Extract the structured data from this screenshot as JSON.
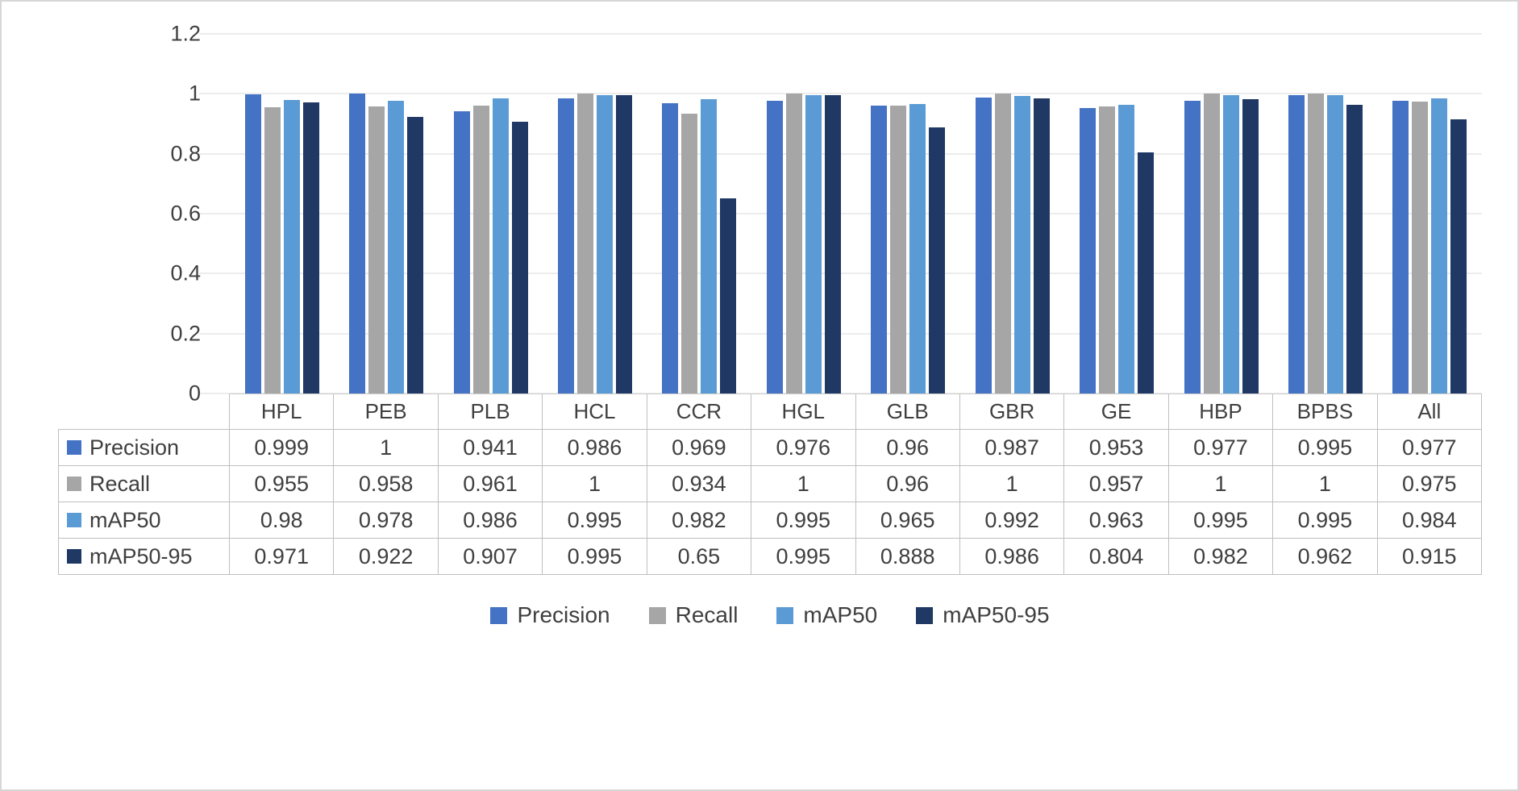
{
  "chart_data": {
    "type": "bar",
    "title": "",
    "xlabel": "",
    "ylabel": "",
    "ylim": [
      0,
      1.2
    ],
    "yticks": [
      "0",
      "0.2",
      "0.4",
      "0.6",
      "0.8",
      "1",
      "1.2"
    ],
    "grid": true,
    "legend_position": "bottom",
    "data_table_shown": true,
    "categories": [
      "HPL",
      "PEB",
      "PLB",
      "HCL",
      "CCR",
      "HGL",
      "GLB",
      "GBR",
      "GE",
      "HBP",
      "BPBS",
      "All"
    ],
    "series": [
      {
        "name": "Precision",
        "color": "#4472C4",
        "values": [
          0.999,
          1,
          0.941,
          0.986,
          0.969,
          0.976,
          0.96,
          0.987,
          0.953,
          0.977,
          0.995,
          0.977
        ]
      },
      {
        "name": "Recall",
        "color": "#A6A6A6",
        "values": [
          0.955,
          0.958,
          0.961,
          1,
          0.934,
          1,
          0.96,
          1,
          0.957,
          1,
          1,
          0.975
        ]
      },
      {
        "name": "mAP50",
        "color": "#5B9BD5",
        "values": [
          0.98,
          0.978,
          0.986,
          0.995,
          0.982,
          0.995,
          0.965,
          0.992,
          0.963,
          0.995,
          0.995,
          0.984
        ]
      },
      {
        "name": "mAP50-95",
        "color": "#1F3864",
        "values": [
          0.971,
          0.922,
          0.907,
          0.995,
          0.65,
          0.995,
          0.888,
          0.986,
          0.804,
          0.982,
          0.962,
          0.915
        ]
      }
    ]
  }
}
